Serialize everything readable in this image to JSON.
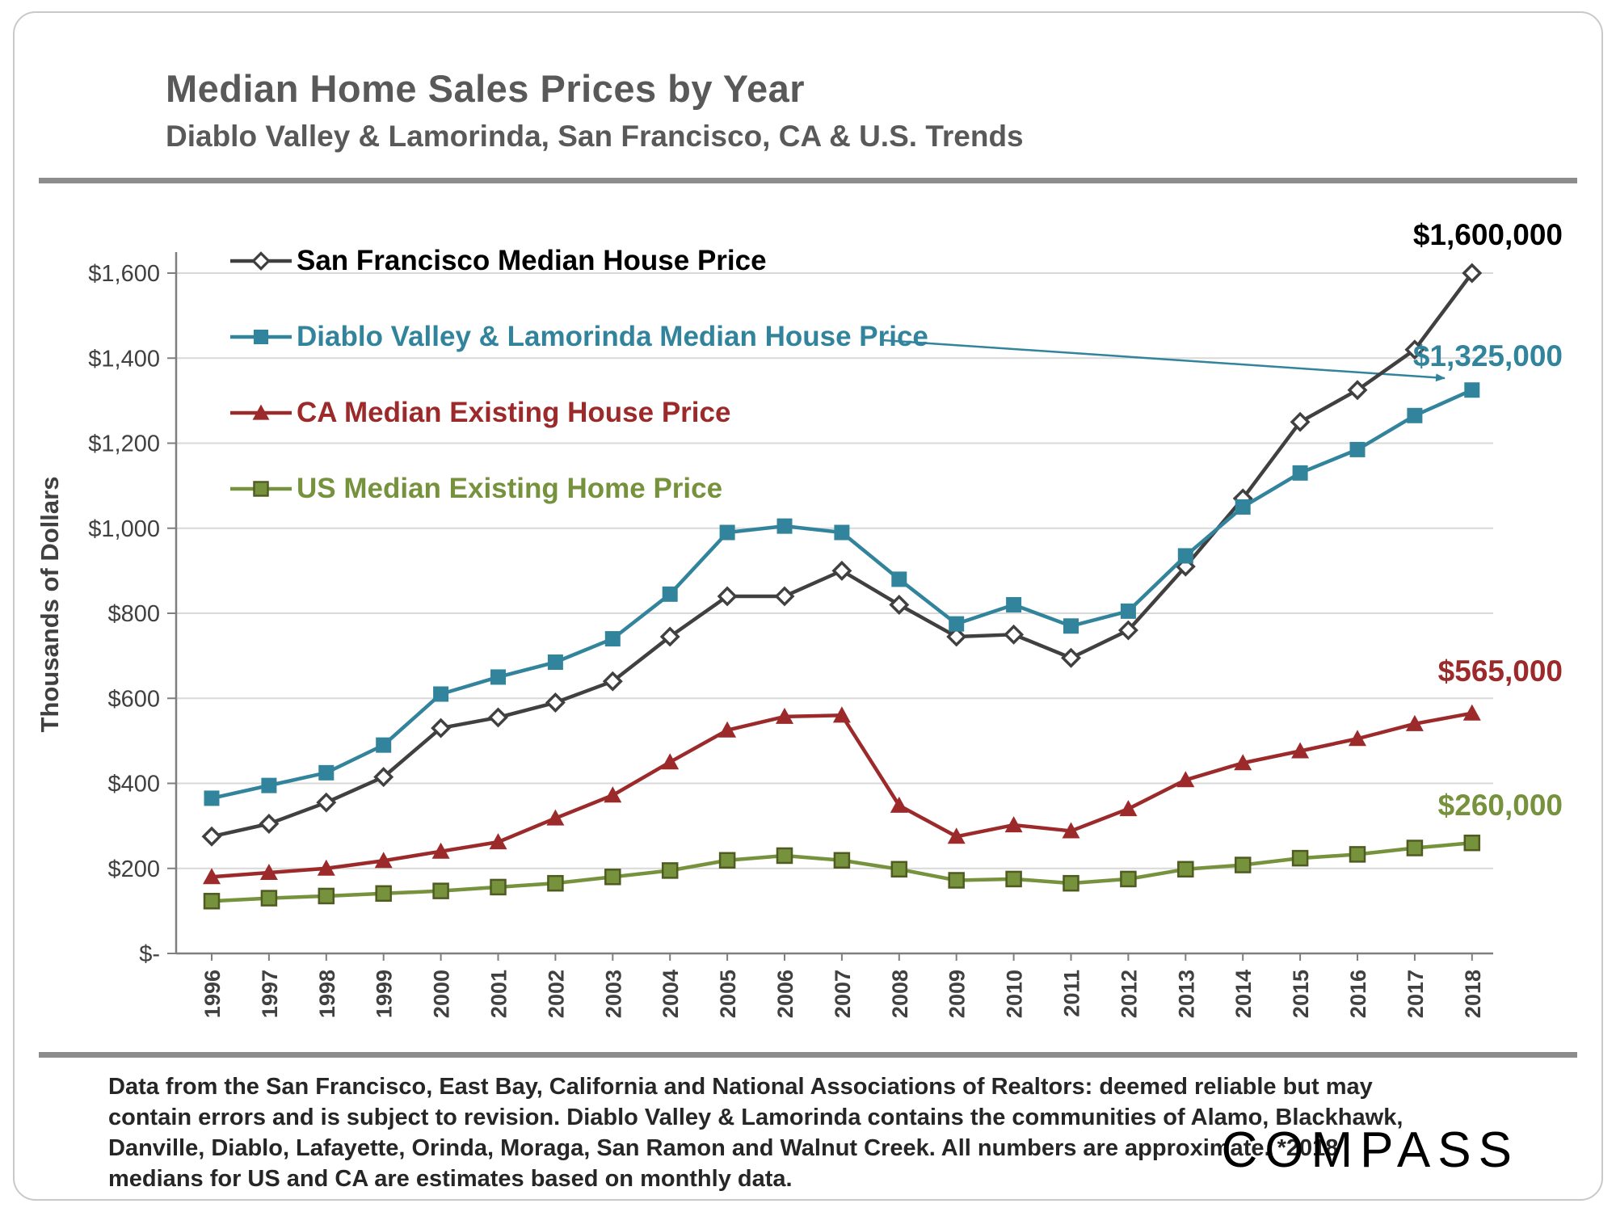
{
  "header": {
    "title": "Median Home Sales Prices by Year",
    "subtitle": "Diablo Valley & Lamorinda,  San Francisco, CA & U.S. Trends"
  },
  "chart_data": {
    "type": "line",
    "title": "Median Home Sales Prices by Year",
    "subtitle": "Diablo Valley & Lamorinda, San Francisco, CA & U.S. Trends",
    "xlabel": "",
    "ylabel": "Thousands of Dollars",
    "ylim": [
      0,
      1600
    ],
    "grid": "horizontal",
    "legend_position": "inside-top-left",
    "y_ticks": [
      "$-",
      "$200",
      "$400",
      "$600",
      "$800",
      "$1,000",
      "$1,200",
      "$1,400",
      "$1,600"
    ],
    "y_tick_values": [
      0,
      200,
      400,
      600,
      800,
      1000,
      1200,
      1400,
      1600
    ],
    "categories": [
      1996,
      1997,
      1998,
      1999,
      2000,
      2001,
      2002,
      2003,
      2004,
      2005,
      2006,
      2007,
      2008,
      2009,
      2010,
      2011,
      2012,
      2013,
      2014,
      2015,
      2016,
      2017,
      2018
    ],
    "series": [
      {
        "name": "San Francisco Median House Price",
        "color": "#404040",
        "label_color": "#000000",
        "marker": "diamond",
        "end_label": "$1,600,000",
        "values": [
          275,
          305,
          355,
          415,
          530,
          555,
          590,
          640,
          745,
          840,
          840,
          900,
          820,
          745,
          750,
          695,
          760,
          910,
          1070,
          1250,
          1325,
          1420,
          1600
        ]
      },
      {
        "name": "Diablo Valley & Lamorinda Median House Price",
        "color": "#31849b",
        "marker": "square",
        "end_label": "$1,325,000",
        "values": [
          365,
          395,
          425,
          490,
          610,
          650,
          685,
          740,
          845,
          990,
          1005,
          990,
          880,
          775,
          820,
          770,
          805,
          935,
          1050,
          1130,
          1185,
          1265,
          1325
        ]
      },
      {
        "name": "CA Median Existing House Price",
        "color": "#9c2a2a",
        "marker": "triangle",
        "end_label": "$565,000",
        "values": [
          180,
          190,
          200,
          218,
          240,
          262,
          318,
          372,
          450,
          525,
          557,
          560,
          348,
          275,
          302,
          288,
          340,
          408,
          448,
          476,
          505,
          540,
          565
        ]
      },
      {
        "name": "US Median Existing Home Price",
        "color": "#76923c",
        "marker": "square-outlined",
        "marker_outline": "#4f5b20",
        "end_label": "$260,000",
        "values": [
          123,
          130,
          135,
          141,
          147,
          156,
          165,
          180,
          195,
          219,
          230,
          219,
          198,
          172,
          175,
          165,
          175,
          198,
          208,
          224,
          233,
          248,
          260
        ]
      }
    ]
  },
  "footer": {
    "disclaimer_lines": [
      "Data from the San Francisco,  East Bay,  California and National Associations  of Realtors:  deemed reliable but may",
      "contain errors and is subject to revision. Diablo Valley & Lamorinda contains  the communities of Alamo, Blackhawk,",
      "Danville,  Diablo,  Lafayette, Orinda, Moraga,  San Ramon and Walnut Creek. All numbers are approximate.  *2018",
      "medians for US and CA are estimates based on monthly data."
    ],
    "logo": "COMPASS"
  }
}
